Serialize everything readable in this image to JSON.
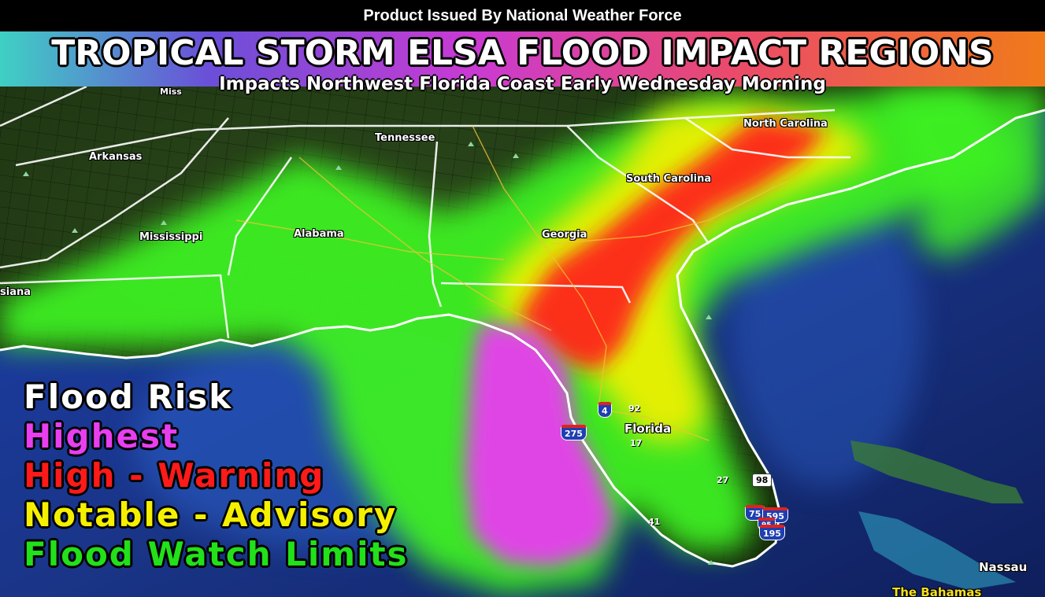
{
  "header": {
    "issued_by": "Product Issued By National Weather Force",
    "title": "TROPICAL STORM ELSA FLOOD IMPACT REGIONS",
    "subtitle": "Impacts Northwest Florida Coast Early Wednesday Morning"
  },
  "legend": {
    "heading": "Flood Risk",
    "items": [
      {
        "label": "Highest",
        "color": "#e83ef0"
      },
      {
        "label": "High - Warning",
        "color": "#ff1a1a"
      },
      {
        "label": "Notable - Advisory",
        "color": "#f5f000"
      },
      {
        "label": "Flood Watch Limits",
        "color": "#22e01a"
      }
    ],
    "heading_color": "#ffffff"
  },
  "map": {
    "labels": {
      "mississippi_cut": "Miss",
      "tennessee": "Tennessee",
      "arkansas": "Arkansas",
      "mississippi": "Mississippi",
      "alabama": "Alabama",
      "louisiana": "siana",
      "georgia": "Georgia",
      "south_carolina": "South Carolina",
      "north_carolina": "North Carolina",
      "florida": "Florida",
      "nassau": "Nassau",
      "bahamas": "The Bahamas"
    },
    "roads": {
      "i4": "4",
      "i275": "275",
      "us92": "92",
      "us17": "17",
      "us27": "27",
      "us98": "98",
      "us41": "41",
      "i75": "75",
      "i595": "595",
      "i95": "95",
      "i195": "195"
    },
    "colors": {
      "land": "#1f3a12",
      "ocean": "#1d3f9a",
      "watch": "#22e01a",
      "advisory": "#f5f000",
      "warning": "#ff1a1a",
      "highest": "#e83ef0"
    }
  }
}
